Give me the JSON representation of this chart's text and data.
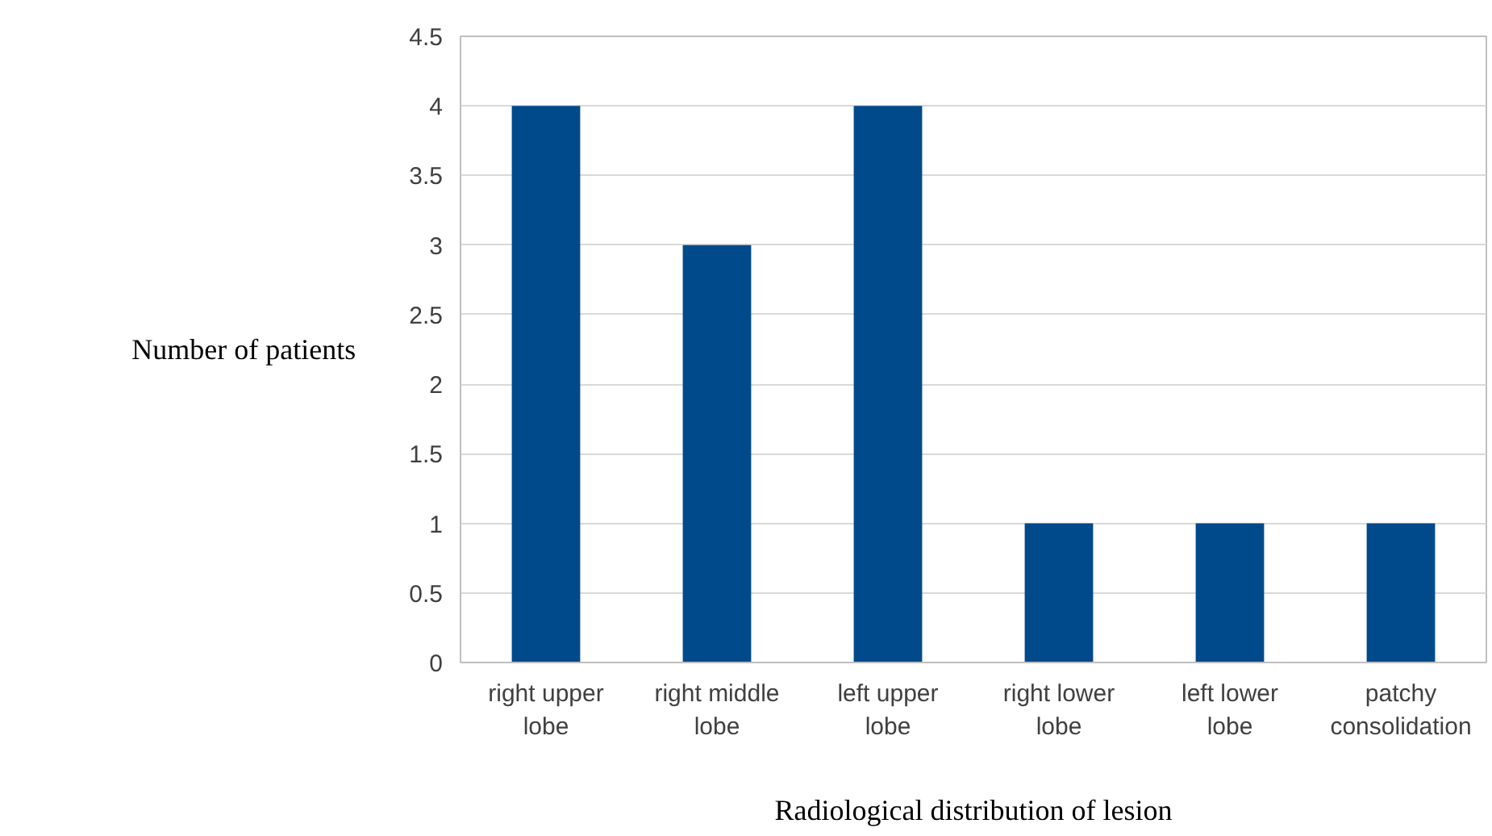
{
  "chart_data": {
    "type": "bar",
    "xlabel": "Radiological distribution of lesion",
    "ylabel": "Number of patients",
    "categories": [
      "right upper lobe",
      "right middle lobe",
      "left upper lobe",
      "right lower lobe",
      "left lower lobe",
      "patchy consolidation"
    ],
    "values": [
      4,
      3,
      4,
      1,
      1,
      1
    ],
    "color": "#004a8c",
    "ylim": [
      0,
      4.5
    ],
    "yticks": [
      0,
      0.5,
      1,
      1.5,
      2,
      2.5,
      3,
      3.5,
      4,
      4.5
    ],
    "grid": "y"
  }
}
